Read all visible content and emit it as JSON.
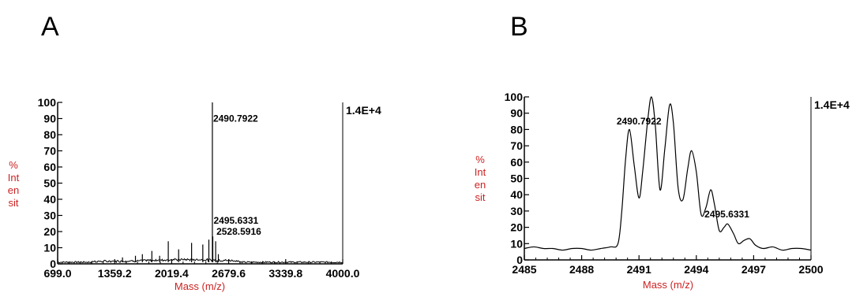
{
  "chart_data": [
    {
      "type": "line",
      "panel_label": "A",
      "xlabel": "Mass (m/z)",
      "ylabel_lines": [
        "%",
        "Int",
        "en",
        "sit"
      ],
      "intensity_scale": "1.4E+4",
      "xlim": [
        699.0,
        4000.0
      ],
      "ylim": [
        0,
        100
      ],
      "x_ticks": [
        "699.0",
        "1359.2",
        "2019.4",
        "2679.6",
        "3339.8",
        "4000.0"
      ],
      "y_ticks": [
        "0",
        "10",
        "20",
        "30",
        "40",
        "50",
        "60",
        "70",
        "80",
        "90",
        "100"
      ],
      "peak_labels": [
        {
          "text": "2490.7922",
          "x": 2490.79,
          "y": 88
        },
        {
          "text": "2495.6331",
          "x": 2495.63,
          "y": 25
        },
        {
          "text": "2528.5916",
          "x": 2528.59,
          "y": 18
        }
      ],
      "peaks": [
        {
          "x": 1450,
          "y": 4
        },
        {
          "x": 1600,
          "y": 5
        },
        {
          "x": 1680,
          "y": 6
        },
        {
          "x": 1790,
          "y": 8
        },
        {
          "x": 1880,
          "y": 5
        },
        {
          "x": 1980,
          "y": 14
        },
        {
          "x": 2100,
          "y": 9
        },
        {
          "x": 2250,
          "y": 13
        },
        {
          "x": 2380,
          "y": 12
        },
        {
          "x": 2450,
          "y": 15
        },
        {
          "x": 2490.79,
          "y": 100
        },
        {
          "x": 2495.63,
          "y": 17
        },
        {
          "x": 2528.59,
          "y": 14
        },
        {
          "x": 2560,
          "y": 6
        }
      ]
    },
    {
      "type": "line",
      "panel_label": "B",
      "xlabel": "Mass (m/z)",
      "ylabel_lines": [
        "%",
        "Int",
        "en",
        "sit"
      ],
      "intensity_scale": "1.4E+4",
      "xlim": [
        2485,
        2500
      ],
      "ylim": [
        0,
        100
      ],
      "x_ticks": [
        "2485",
        "2488",
        "2491",
        "2494",
        "2497",
        "2500"
      ],
      "y_ticks": [
        "0",
        "10",
        "20",
        "30",
        "40",
        "50",
        "60",
        "70",
        "80",
        "90",
        "100"
      ],
      "peak_labels": [
        {
          "text": "2490.7922",
          "x": 2491.0,
          "y": 83
        },
        {
          "text": "2495.6331",
          "x": 2495.6,
          "y": 26
        }
      ],
      "points": [
        [
          2485.0,
          7
        ],
        [
          2485.5,
          8
        ],
        [
          2486.0,
          7
        ],
        [
          2486.5,
          7
        ],
        [
          2487.0,
          6
        ],
        [
          2487.5,
          7
        ],
        [
          2488.0,
          7
        ],
        [
          2488.5,
          6
        ],
        [
          2489.0,
          7
        ],
        [
          2489.5,
          8
        ],
        [
          2489.9,
          10
        ],
        [
          2490.1,
          30
        ],
        [
          2490.3,
          62
        ],
        [
          2490.5,
          80
        ],
        [
          2490.75,
          58
        ],
        [
          2491.0,
          38
        ],
        [
          2491.2,
          55
        ],
        [
          2491.45,
          85
        ],
        [
          2491.65,
          100
        ],
        [
          2491.85,
          83
        ],
        [
          2492.1,
          43
        ],
        [
          2492.35,
          68
        ],
        [
          2492.6,
          95
        ],
        [
          2492.8,
          84
        ],
        [
          2493.05,
          44
        ],
        [
          2493.3,
          37
        ],
        [
          2493.55,
          56
        ],
        [
          2493.75,
          67
        ],
        [
          2494.0,
          54
        ],
        [
          2494.25,
          28
        ],
        [
          2494.5,
          32
        ],
        [
          2494.75,
          43
        ],
        [
          2494.95,
          34
        ],
        [
          2495.2,
          18
        ],
        [
          2495.45,
          20
        ],
        [
          2495.65,
          22
        ],
        [
          2495.95,
          16
        ],
        [
          2496.2,
          10
        ],
        [
          2496.5,
          12
        ],
        [
          2496.8,
          13
        ],
        [
          2497.1,
          9
        ],
        [
          2497.5,
          7
        ],
        [
          2498.0,
          8
        ],
        [
          2498.5,
          6
        ],
        [
          2499.0,
          7
        ],
        [
          2499.5,
          7
        ],
        [
          2500.0,
          6
        ]
      ]
    }
  ]
}
